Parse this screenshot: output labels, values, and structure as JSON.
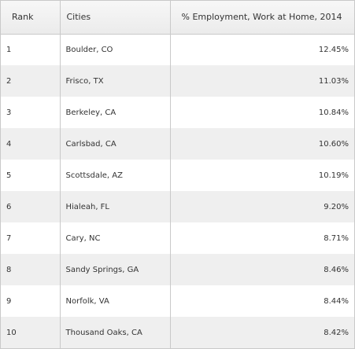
{
  "table": {
    "headers": {
      "rank": "Rank",
      "cities": "Cities",
      "percent": "% Employment, Work at Home, 2014"
    },
    "rows": [
      {
        "rank": "1",
        "city": "Boulder, CO",
        "percent": "12.45%"
      },
      {
        "rank": "2",
        "city": "Frisco, TX",
        "percent": "11.03%"
      },
      {
        "rank": "3",
        "city": "Berkeley, CA",
        "percent": "10.84%"
      },
      {
        "rank": "4",
        "city": "Carlsbad, CA",
        "percent": "10.60%"
      },
      {
        "rank": "5",
        "city": "Scottsdale, AZ",
        "percent": "10.19%"
      },
      {
        "rank": "6",
        "city": "Hialeah, FL",
        "percent": "9.20%"
      },
      {
        "rank": "7",
        "city": "Cary, NC",
        "percent": "8.71%"
      },
      {
        "rank": "8",
        "city": "Sandy Springs, GA",
        "percent": "8.46%"
      },
      {
        "rank": "9",
        "city": "Norfolk, VA",
        "percent": "8.44%"
      },
      {
        "rank": "10",
        "city": "Thousand Oaks, CA",
        "percent": "8.42%"
      }
    ]
  },
  "colors": {
    "header_background": "#f0f0f0",
    "row_alternate": "#efefef",
    "row_plain": "#ffffff",
    "border": "#c9c9c9",
    "text": "#333333"
  }
}
